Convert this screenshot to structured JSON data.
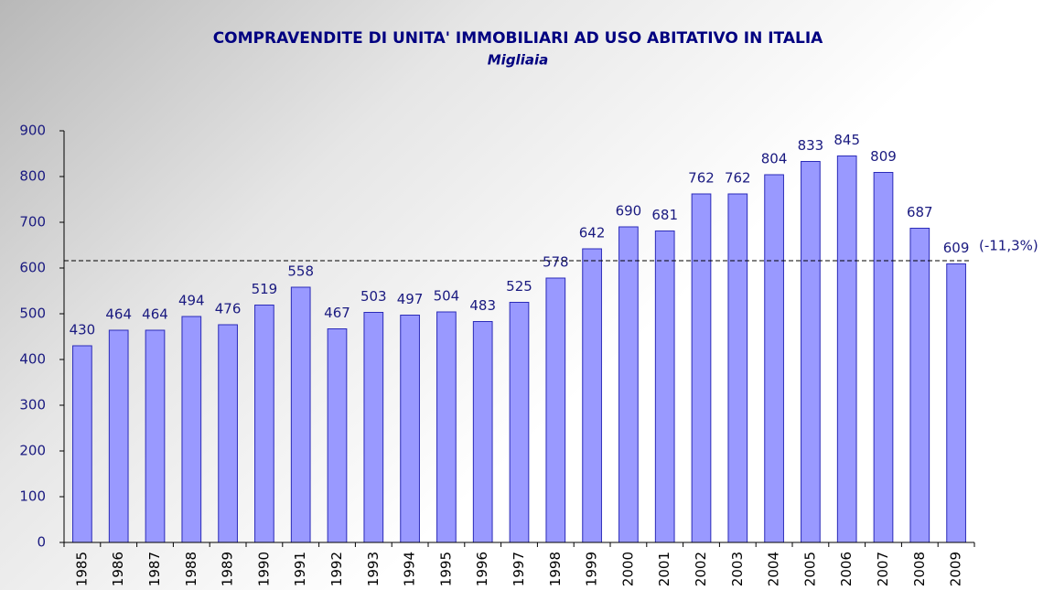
{
  "chart_data": {
    "type": "bar",
    "title": "COMPRAVENDITE DI UNITA' IMMOBILIARI AD USO ABITATIVO IN ITALIA",
    "subtitle": "Migliaia",
    "categories": [
      "1985",
      "1986",
      "1987",
      "1988",
      "1989",
      "1990",
      "1991",
      "1992",
      "1993",
      "1994",
      "1995",
      "1996",
      "1997",
      "1998",
      "1999",
      "2000",
      "2001",
      "2002",
      "2003",
      "2004",
      "2005",
      "2006",
      "2007",
      "2008",
      "2009"
    ],
    "values": [
      430,
      464,
      464,
      494,
      476,
      519,
      558,
      467,
      503,
      497,
      504,
      483,
      525,
      578,
      642,
      690,
      681,
      762,
      762,
      804,
      833,
      845,
      809,
      687,
      609
    ],
    "color": "#9999ff",
    "ylim": [
      0,
      900
    ],
    "yticks": [
      0,
      100,
      200,
      300,
      400,
      500,
      600,
      700,
      800,
      900
    ],
    "reference_line": {
      "value": 616,
      "label": "(-11,3%)"
    }
  }
}
